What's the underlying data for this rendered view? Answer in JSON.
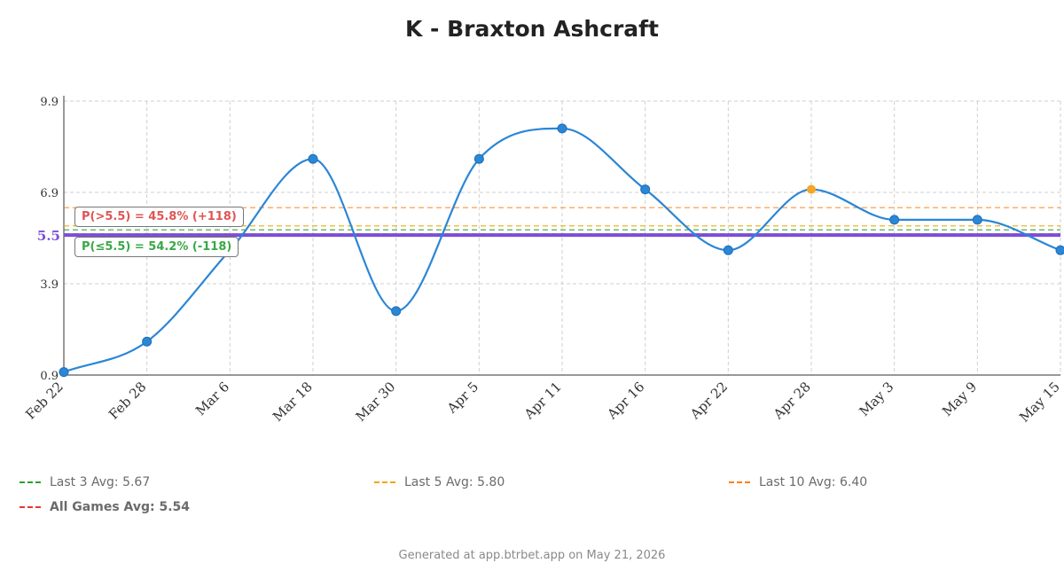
{
  "chart_data": {
    "type": "line",
    "title": "K - Braxton Ashcraft",
    "x": [
      "Feb 22",
      "Feb 28",
      "Mar 6",
      "Mar 18",
      "Mar 30",
      "Apr 5",
      "Apr 11",
      "Apr 16",
      "Apr 22",
      "Apr 28",
      "May 3",
      "May 9",
      "May 15"
    ],
    "values": [
      1,
      2,
      5,
      8,
      3,
      8,
      9,
      7,
      5,
      7,
      6,
      6,
      5
    ],
    "highlight_index": 9,
    "y_ticks": [
      "0.9",
      "3.9",
      "6.9",
      "9.9"
    ],
    "ylim": [
      0.9,
      9.9
    ],
    "line_value": 5.5,
    "line_label": "5.5",
    "averages": [
      {
        "label": "Last 3 Avg: 5.67",
        "value": 5.67,
        "color": "#2ca02c"
      },
      {
        "label": "Last 5 Avg: 5.80",
        "value": 5.8,
        "color": "#f0a500"
      },
      {
        "label": "Last 10 Avg: 6.40",
        "value": 6.4,
        "color": "#ff7f0e"
      },
      {
        "label": "All Games Avg: 5.54",
        "value": 5.54,
        "color": "#e53935"
      }
    ],
    "prob_over": "P(>5.5) = 45.8% (+118)",
    "prob_under": "P(≤5.5) = 54.2% (-118)",
    "colors": {
      "line": "#2b86d6",
      "point": "#2b86d6",
      "highlight": "#f5a623",
      "prop_line": "#7b4fd6",
      "over": "#e05555",
      "under": "#3aa845",
      "grid": "#cfcfcf"
    },
    "grid": true
  },
  "footer": "Generated at app.btrbet.app on May 21, 2026"
}
